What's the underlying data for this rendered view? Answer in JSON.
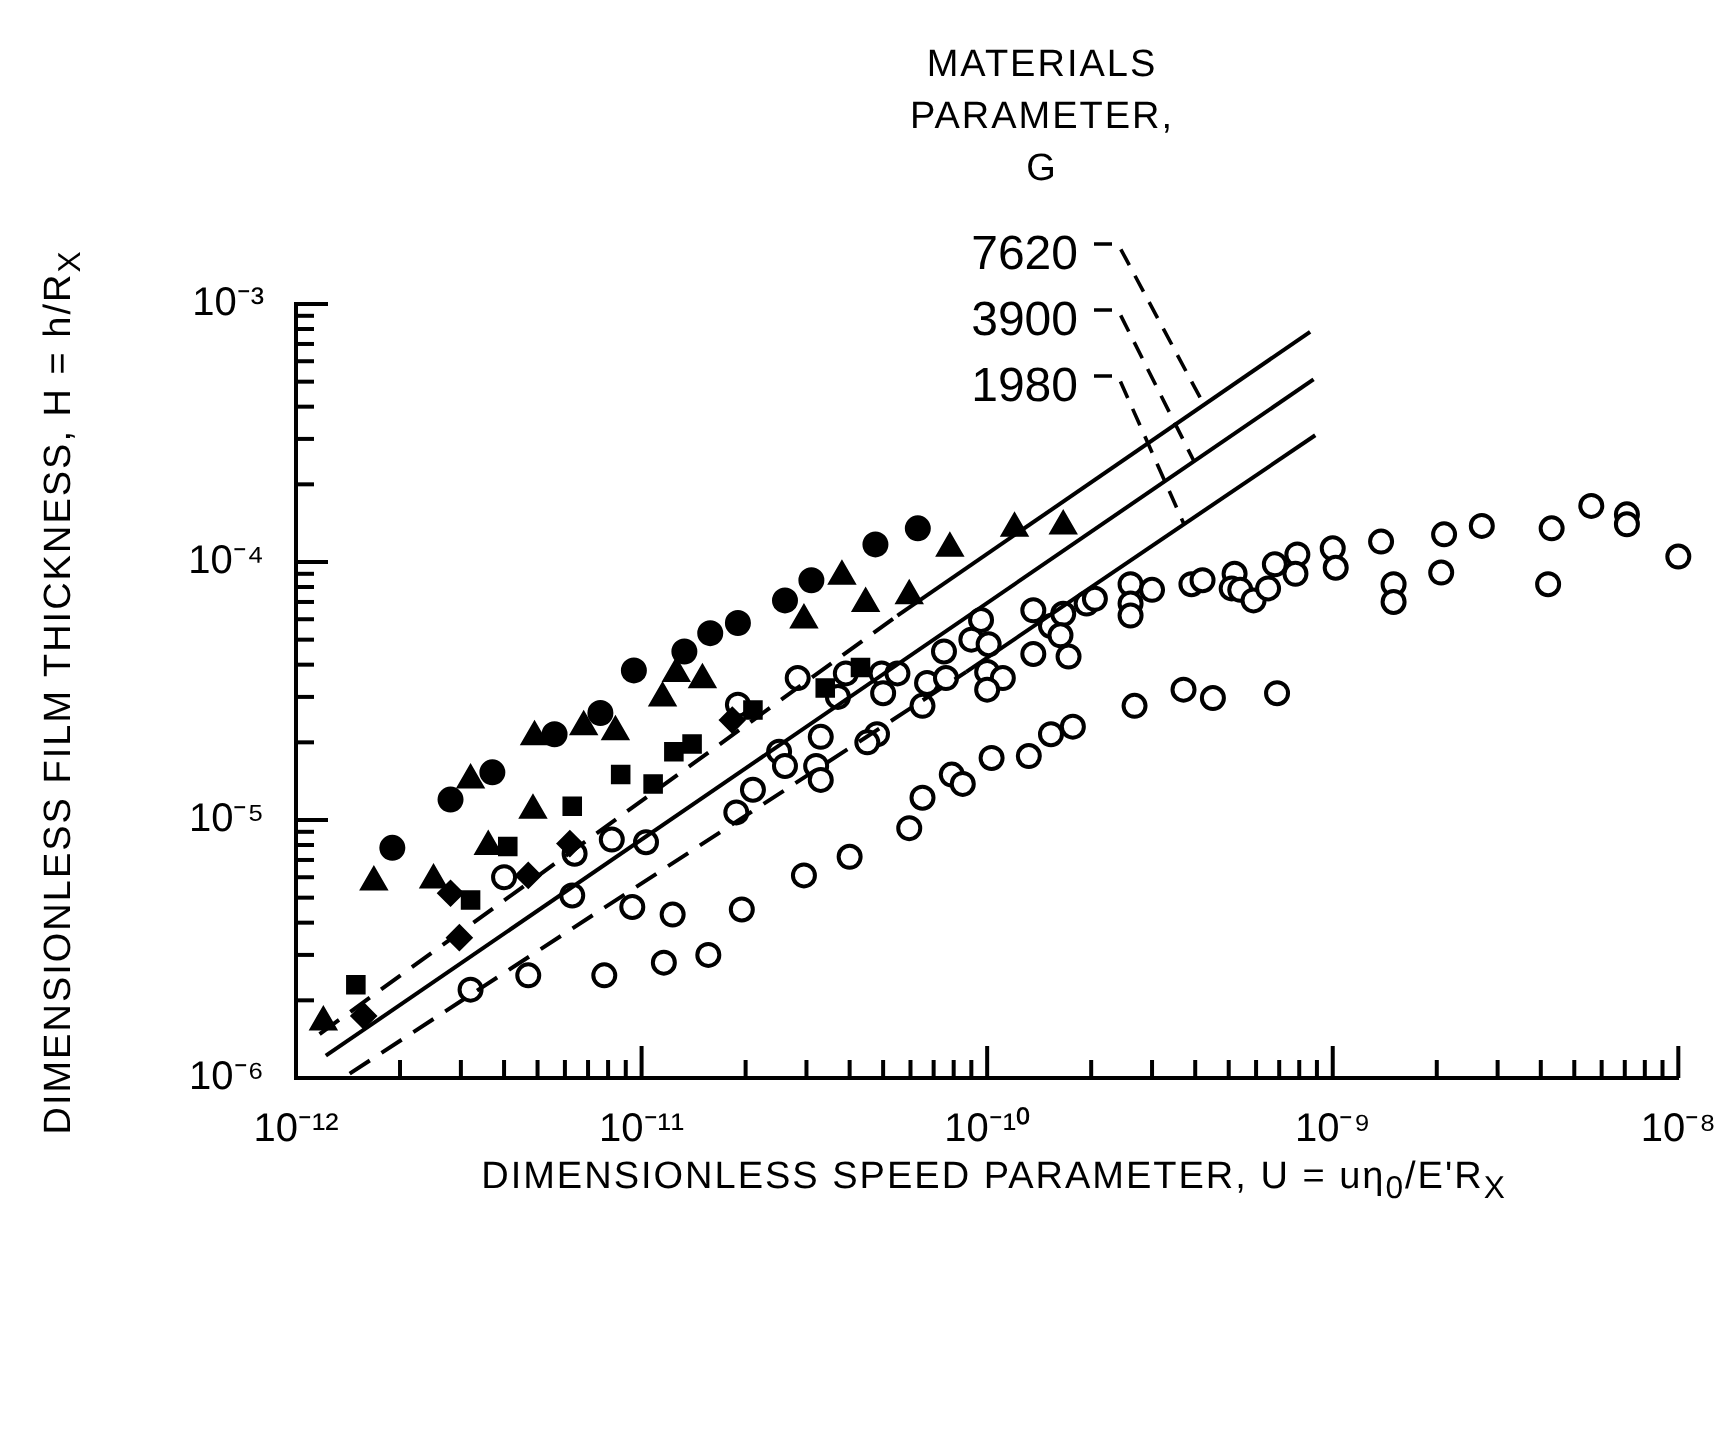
{
  "chart_data": {
    "type": "scatter",
    "xlabel": "DIMENSIONLESS SPEED PARAMETER, U = uη$_{0}$/E'R$_{X}$",
    "ylabel": "DIMENSIONLESS FILM THICKNESS, H = h/R$_{X}$",
    "legend_title": "MATERIALS\nPARAMETER,\nG",
    "log": "xy",
    "grid": false,
    "legend": false,
    "xlim": [
      1e-12,
      1e-08
    ],
    "ylim": [
      1e-06,
      0.001
    ],
    "xticks": [
      {
        "value": 1e-12,
        "label": "10⁻¹²"
      },
      {
        "value": 2e-12,
        "label": null
      },
      {
        "value": 3e-12,
        "label": null
      },
      {
        "value": 4e-12,
        "label": null
      },
      {
        "value": 5e-12,
        "label": null
      },
      {
        "value": 6e-12,
        "label": null
      },
      {
        "value": 7e-12,
        "label": null
      },
      {
        "value": 8e-12,
        "label": null
      },
      {
        "value": 9e-12,
        "label": null
      },
      {
        "value": 1e-11,
        "label": "10⁻¹¹"
      },
      {
        "value": 2e-11,
        "label": null
      },
      {
        "value": 3e-11,
        "label": null
      },
      {
        "value": 4e-11,
        "label": null
      },
      {
        "value": 5e-11,
        "label": null
      },
      {
        "value": 6e-11,
        "label": null
      },
      {
        "value": 7e-11,
        "label": null
      },
      {
        "value": 8e-11,
        "label": null
      },
      {
        "value": 9e-11,
        "label": null
      },
      {
        "value": 1e-10,
        "label": "10⁻¹⁰"
      },
      {
        "value": 2e-10,
        "label": null
      },
      {
        "value": 3e-10,
        "label": null
      },
      {
        "value": 4e-10,
        "label": null
      },
      {
        "value": 5e-10,
        "label": null
      },
      {
        "value": 6e-10,
        "label": null
      },
      {
        "value": 7e-10,
        "label": null
      },
      {
        "value": 8e-10,
        "label": null
      },
      {
        "value": 9e-10,
        "label": null
      },
      {
        "value": 1e-09,
        "label": "10⁻⁹"
      },
      {
        "value": 2e-09,
        "label": null
      },
      {
        "value": 3e-09,
        "label": null
      },
      {
        "value": 4e-09,
        "label": null
      },
      {
        "value": 5e-09,
        "label": null
      },
      {
        "value": 6e-09,
        "label": null
      },
      {
        "value": 7e-09,
        "label": null
      },
      {
        "value": 8e-09,
        "label": null
      },
      {
        "value": 9e-09,
        "label": null
      },
      {
        "value": 1e-08,
        "label": "10⁻⁸"
      }
    ],
    "yticks": [
      {
        "value": 1e-06,
        "label": "10⁻⁶"
      },
      {
        "value": 2e-06,
        "label": null
      },
      {
        "value": 3e-06,
        "label": null
      },
      {
        "value": 4e-06,
        "label": null
      },
      {
        "value": 5e-06,
        "label": null
      },
      {
        "value": 6e-06,
        "label": null
      },
      {
        "value": 7e-06,
        "label": null
      },
      {
        "value": 8e-06,
        "label": null
      },
      {
        "value": 9e-06,
        "label": null
      },
      {
        "value": 1e-05,
        "label": "10⁻⁵"
      },
      {
        "value": 2e-05,
        "label": null
      },
      {
        "value": 3e-05,
        "label": null
      },
      {
        "value": 4e-05,
        "label": null
      },
      {
        "value": 5e-05,
        "label": null
      },
      {
        "value": 6e-05,
        "label": null
      },
      {
        "value": 7e-05,
        "label": null
      },
      {
        "value": 8e-05,
        "label": null
      },
      {
        "value": 9e-05,
        "label": null
      },
      {
        "value": 0.0001,
        "label": "10⁻⁴"
      },
      {
        "value": 0.0002,
        "label": null
      },
      {
        "value": 0.0003,
        "label": null
      },
      {
        "value": 0.0004,
        "label": null
      },
      {
        "value": 0.0005,
        "label": null
      },
      {
        "value": 0.0006,
        "label": null
      },
      {
        "value": 0.0007,
        "label": null
      },
      {
        "value": 0.0008,
        "label": null
      },
      {
        "value": 0.0009,
        "label": null
      },
      {
        "value": 0.001,
        "label": "10⁻³"
      }
    ],
    "series": [
      {
        "type": "line",
        "name": "7620",
        "color": "#000000",
        "line_style": "solid",
        "x": [
          5.5e-11,
          8.6e-10
        ],
        "values": [
          6.2e-05,
          0.00078
        ]
      },
      {
        "type": "line",
        "name": "3900",
        "color": "#000000",
        "line_style": "solid",
        "x": [
          1.22e-12,
          8.8e-10
        ],
        "values": [
          1.22e-06,
          0.00051
        ]
      },
      {
        "type": "line",
        "name": "1980",
        "color": "#000000",
        "line_style": "solid",
        "x": [
          8.7e-11,
          8.9e-10
        ],
        "values": [
          3.75e-05,
          0.00031
        ]
      },
      {
        "type": "line",
        "color": "#000000",
        "line_style": "dashed",
        "x": [
          1.17e-12,
          5.5e-11
        ],
        "values": [
          1.48e-06,
          6.2e-05
        ]
      },
      {
        "type": "line",
        "color": "#000000",
        "line_style": "dashed",
        "x": [
          1.43e-12,
          8.7e-11
        ],
        "values": [
          1.04e-06,
          3.75e-05
        ]
      },
      {
        "marker": "circle",
        "color": "#000000",
        "x": [
          1.9e-12,
          2.8e-12,
          3.7e-12,
          5.6e-12,
          7.6e-12,
          9.5e-12,
          1.33e-11,
          1.58e-11,
          1.9e-11,
          2.6e-11,
          3.1e-11,
          4.75e-11,
          6.3e-11
        ],
        "values": [
          7.8e-06,
          1.2e-05,
          1.53e-05,
          2.15e-05,
          2.6e-05,
          3.8e-05,
          4.5e-05,
          5.3e-05,
          5.8e-05,
          7.1e-05,
          8.5e-05,
          0.000117,
          0.000135
        ]
      },
      {
        "marker": "triangle",
        "color": "#000000",
        "x": [
          1.2e-12,
          1.68e-12,
          2.5e-12,
          3.2e-12,
          3.6e-12,
          4.85e-12,
          4.9e-12,
          6.8e-12,
          8.4e-12,
          1.15e-11,
          1.26e-11,
          1.5e-11,
          2.95e-11,
          3.8e-11,
          4.45e-11,
          5.95e-11,
          7.8e-11,
          1.2e-10,
          1.66e-10
        ],
        "values": [
          1.65e-06,
          5.75e-06,
          5.85e-06,
          1.43e-05,
          7.9e-06,
          1.09e-05,
          2.1e-05,
          2.3e-05,
          2.2e-05,
          2.97e-05,
          3.7e-05,
          3.5e-05,
          5.96e-05,
          8.8e-05,
          6.9e-05,
          7.4e-05,
          0.000113,
          0.000135,
          0.000138
        ]
      },
      {
        "marker": "square",
        "color": "#000000",
        "x": [
          1.49e-12,
          3.2e-12,
          4.1e-12,
          6.3e-12,
          8.7e-12,
          1.08e-11,
          1.24e-11,
          1.4e-11,
          2.1e-11,
          3.4e-11,
          4.3e-11
        ],
        "values": [
          2.3e-06,
          4.9e-06,
          7.9e-06,
          1.13e-05,
          1.5e-05,
          1.38e-05,
          1.84e-05,
          1.97e-05,
          2.67e-05,
          3.25e-05,
          3.9e-05
        ]
      },
      {
        "marker": "diamond",
        "color": "#000000",
        "x": [
          1.57e-12,
          2.8e-12,
          2.97e-12,
          4.7e-12,
          6.2e-12,
          1.83e-11
        ],
        "values": [
          1.74e-06,
          5.2e-06,
          3.5e-06,
          6.1e-06,
          8.1e-06,
          2.44e-05
        ]
      },
      {
        "marker": "circle",
        "color": "#ffffff",
        "x": [
          3.2e-12,
          4.7e-12,
          7.8e-12,
          1.16e-11,
          1.56e-11,
          9.4e-12,
          1.23e-11,
          1.95e-11,
          6.3e-12,
          4e-12,
          6.4e-12,
          8.2e-12,
          1.03e-11,
          1.88e-11,
          2.1e-11,
          1.9e-11,
          2.83e-11,
          3.7e-11,
          3.9e-11,
          4.95e-11,
          5.5e-11,
          5e-11,
          6.7e-11,
          7.6e-11,
          6.5e-11,
          9.6e-11,
          9e-11,
          1.01e-10,
          7.5e-11,
          1e-10,
          1.11e-10,
          1e-10,
          1.36e-10,
          1.53e-10,
          1.66e-10,
          1.63e-10,
          1.36e-10,
          1.72e-10,
          1.94e-10,
          2.05e-10,
          2.6e-10,
          2.6e-10,
          2.6e-10,
          3e-10,
          3.9e-10,
          4.2e-10,
          5.2e-10,
          5.1e-10,
          3.3e-11,
          4.8e-11,
          4.5e-11,
          2.5e-11,
          2.6e-11,
          3.2e-11,
          3.3e-11,
          5.95e-11,
          4e-11,
          2.95e-11,
          6.5e-11,
          7.9e-11,
          8.5e-11,
          1.03e-10,
          1.32e-10,
          1.53e-10,
          1.77e-10,
          2.67e-10,
          3.7e-10,
          4.5e-10,
          6.9e-10,
          5.4e-10,
          5.9e-10,
          6.5e-10,
          6.8e-10,
          7.9e-10,
          7.8e-10,
          1e-09,
          1.02e-09,
          1.38e-09,
          1.5e-09,
          1.5e-09,
          2.1e-09,
          2.06e-09,
          2.7e-09,
          4.3e-09,
          4.2e-09,
          5.6e-09,
          7.1e-09,
          7.1e-09,
          1e-08
        ],
        "values": [
          2.2e-06,
          2.5e-06,
          2.5e-06,
          2.8e-06,
          3e-06,
          4.6e-06,
          4.3e-06,
          4.5e-06,
          5.1e-06,
          6e-06,
          7.4e-06,
          8.4e-06,
          8.2e-06,
          1.07e-05,
          1.31e-05,
          2.8e-05,
          3.55e-05,
          3e-05,
          3.7e-05,
          3.7e-05,
          3.7e-05,
          3.1e-05,
          3.4e-05,
          3.55e-05,
          2.77e-05,
          5.96e-05,
          5e-05,
          4.8e-05,
          4.5e-05,
          3.75e-05,
          3.55e-05,
          3.2e-05,
          6.5e-05,
          5.65e-05,
          6.3e-05,
          5.2e-05,
          4.4e-05,
          4.3e-05,
          6.9e-05,
          7.2e-05,
          8.2e-05,
          6.9e-05,
          6.2e-05,
          7.8e-05,
          8.2e-05,
          8.5e-05,
          9e-05,
          7.9e-05,
          2.1e-05,
          2.15e-05,
          2e-05,
          1.84e-05,
          1.62e-05,
          1.62e-05,
          1.43e-05,
          9.3e-06,
          7.2e-06,
          6.1e-06,
          1.22e-05,
          1.5e-05,
          1.38e-05,
          1.74e-05,
          1.77e-05,
          2.15e-05,
          2.3e-05,
          2.77e-05,
          3.2e-05,
          2.97e-05,
          3.1e-05,
          7.8e-05,
          7.1e-05,
          7.9e-05,
          9.8e-05,
          0.000107,
          9e-05,
          0.000113,
          9.5e-05,
          0.00012,
          8.2e-05,
          7e-05,
          0.000128,
          9.1e-05,
          0.000138,
          0.000135,
          8.2e-05,
          0.000165,
          0.000153,
          0.00014,
          0.000105
        ]
      }
    ]
  }
}
